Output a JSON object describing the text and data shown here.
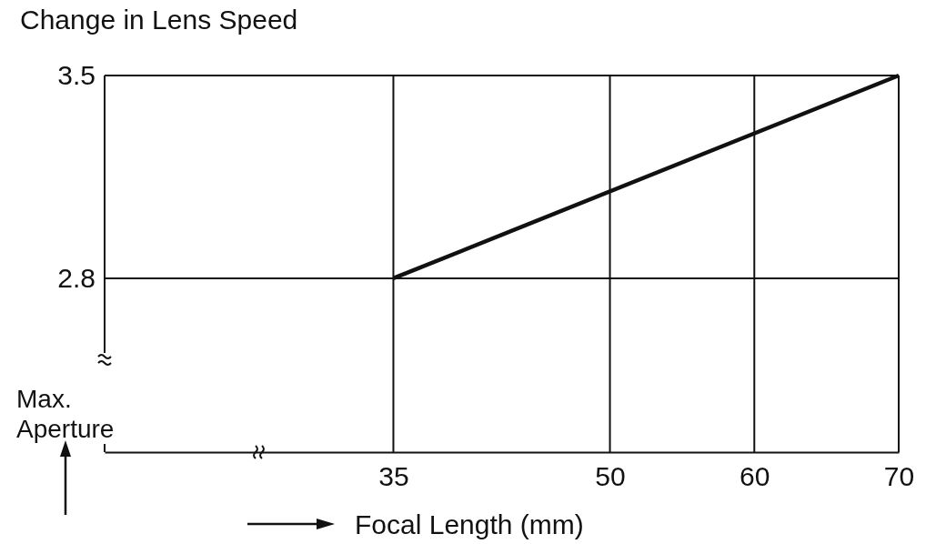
{
  "chart_data": {
    "type": "line",
    "title": "Change in Lens Speed",
    "xlabel": "Focal Length (mm)",
    "ylabel": "Max. Aperture",
    "x": [
      35,
      70
    ],
    "series": [
      {
        "color": "#111111",
        "values": [
          2.8,
          3.5
        ]
      }
    ],
    "xlim": [
      15,
      70
    ],
    "xticks": [
      35,
      50,
      60,
      70
    ],
    "ylim": [
      2.2,
      3.5
    ],
    "yticks": [
      2.8,
      3.5
    ],
    "grid": true,
    "marker": "none",
    "line_style": "solid"
  }
}
